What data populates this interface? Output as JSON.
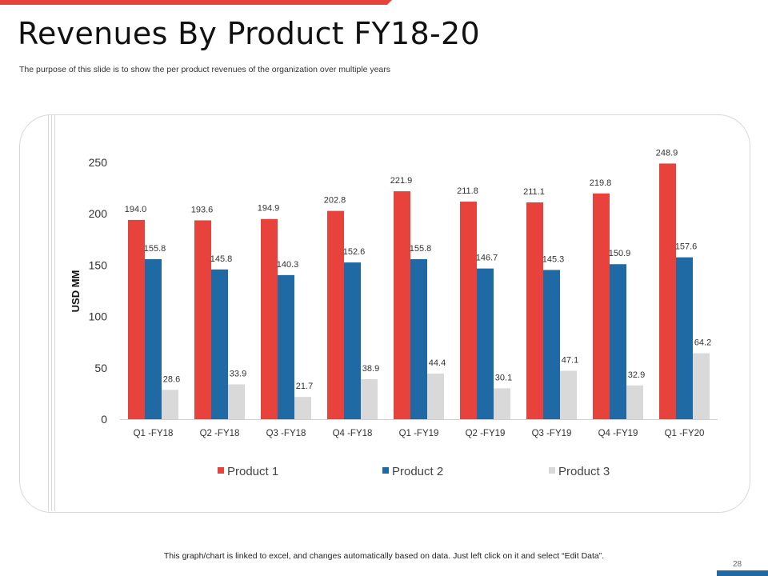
{
  "slide": {
    "title": "Revenues By Product FY18-20",
    "subtitle": "The purpose of this slide is to show the per product revenues of the organization over multiple years",
    "footer_note": "This graph/chart is linked to excel, and changes automatically based on data. Just left click on it and select “Edit Data”.",
    "page_number": "28",
    "accent_color": "#e8423c",
    "secondary_color": "#1f6aa5"
  },
  "chart_data": {
    "type": "bar",
    "ylabel": "USD MM",
    "ylim": [
      0,
      250
    ],
    "yticks": [
      0,
      50,
      100,
      150,
      200,
      250
    ],
    "grid": false,
    "legend_position": "bottom",
    "categories": [
      "Q1 -FY18",
      "Q2 -FY18",
      "Q3 -FY18",
      "Q4 -FY18",
      "Q1 -FY19",
      "Q2 -FY19",
      "Q3 -FY19",
      "Q4 -FY19",
      "Q1 -FY20"
    ],
    "series": [
      {
        "name": "Product 1",
        "color": "#e8423c",
        "values": [
          194.0,
          193.6,
          194.9,
          202.8,
          221.9,
          211.8,
          211.1,
          219.8,
          248.9
        ]
      },
      {
        "name": "Product 2",
        "color": "#1f6aa5",
        "values": [
          155.8,
          145.8,
          140.3,
          152.6,
          155.8,
          146.7,
          145.3,
          150.9,
          157.6
        ]
      },
      {
        "name": "Product 3",
        "color": "#d9d9d9",
        "values": [
          28.6,
          33.9,
          21.7,
          38.9,
          44.4,
          30.1,
          47.1,
          32.9,
          64.2
        ]
      }
    ]
  }
}
